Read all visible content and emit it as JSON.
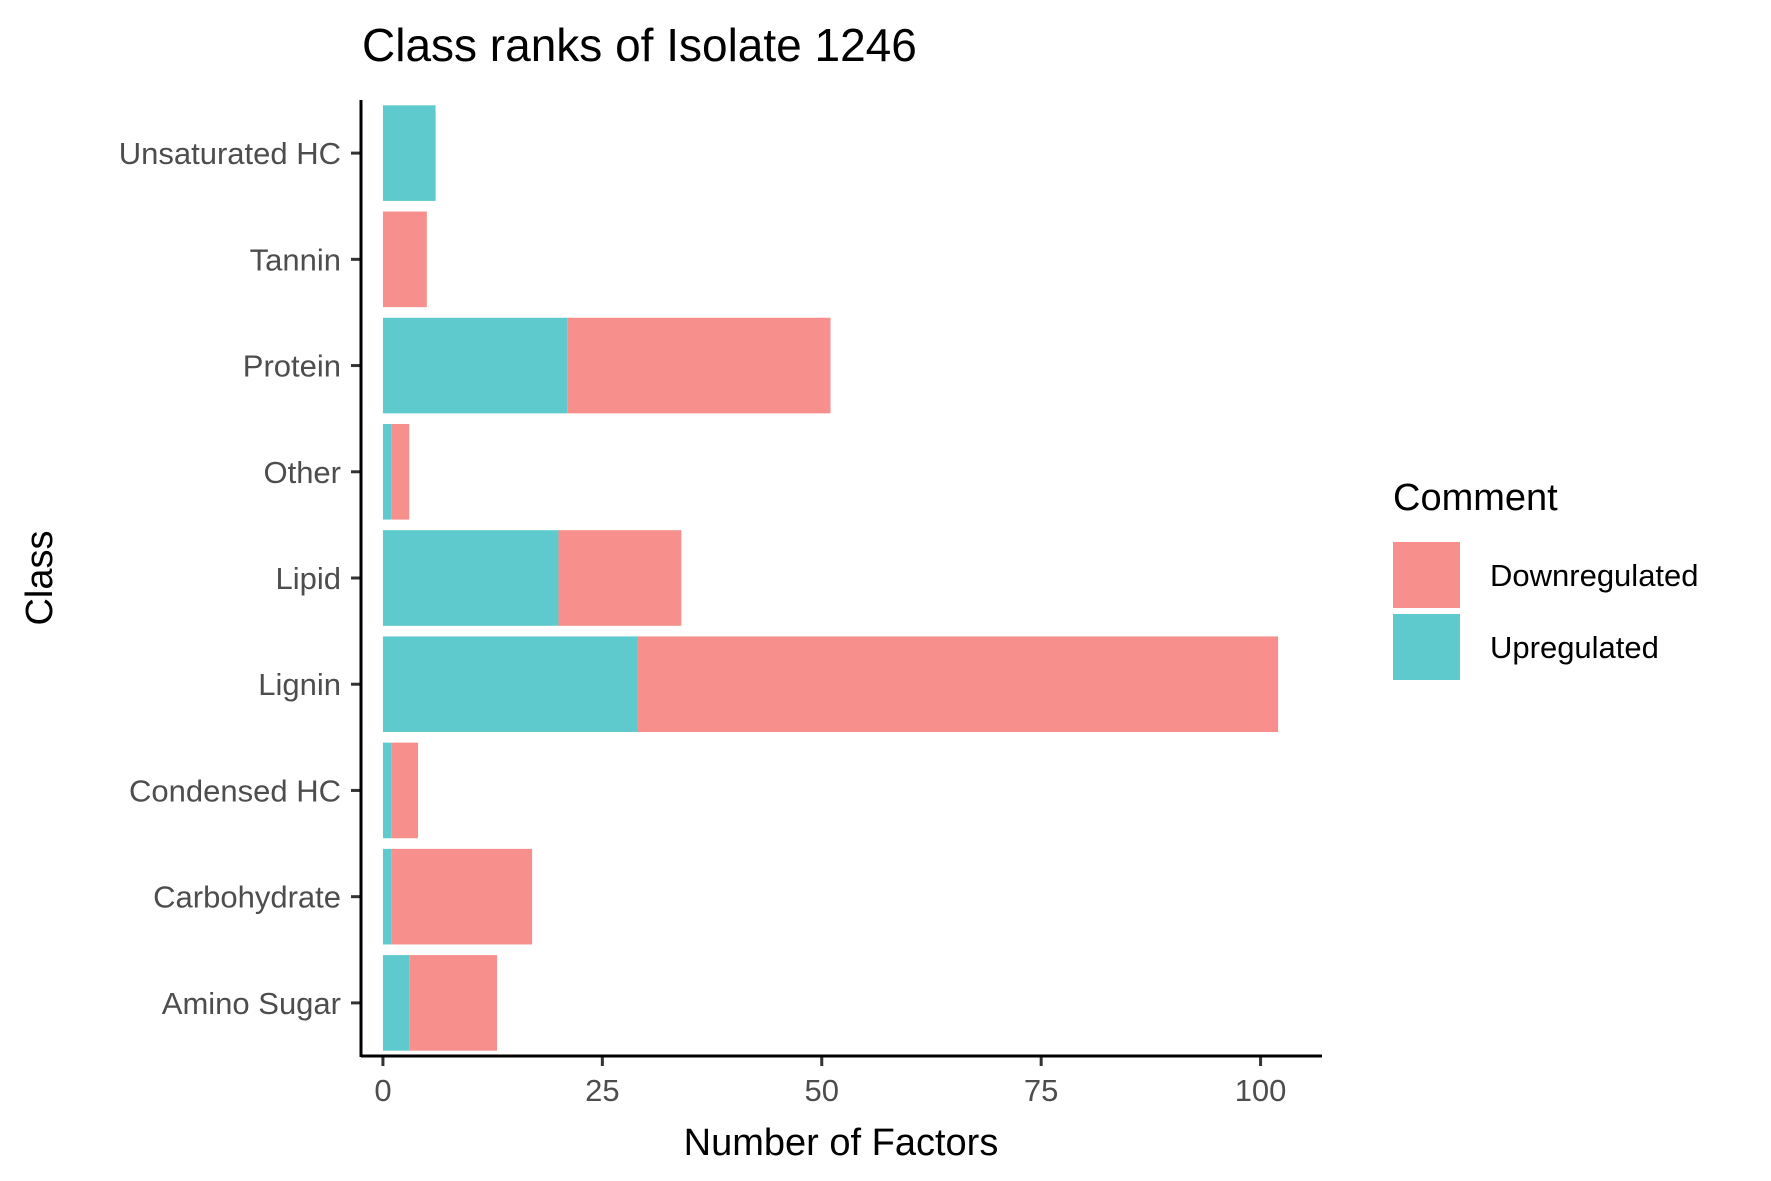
{
  "chart_data": {
    "type": "bar",
    "orientation": "horizontal",
    "stacked": true,
    "title": "Class ranks of Isolate 1246",
    "xlabel": "Number of Factors",
    "ylabel": "Class",
    "xlim": [
      -2.5,
      107
    ],
    "xticks": [
      0,
      25,
      50,
      75,
      100
    ],
    "categories": [
      "Unsaturated HC",
      "Tannin",
      "Protein",
      "Other",
      "Lipid",
      "Lignin",
      "Condensed HC",
      "Carbohydrate",
      "Amino Sugar"
    ],
    "series": [
      {
        "name": "Upregulated",
        "color": "#5ECACD",
        "values": [
          6,
          0,
          21,
          1,
          20,
          29,
          1,
          1,
          3
        ]
      },
      {
        "name": "Downregulated",
        "color": "#F7908C",
        "values": [
          0,
          5,
          30,
          2,
          14,
          73,
          3,
          16,
          10
        ]
      }
    ],
    "legend": {
      "title": "Comment",
      "position": "right",
      "entries": [
        "Downregulated",
        "Upregulated"
      ]
    },
    "grid": false
  }
}
